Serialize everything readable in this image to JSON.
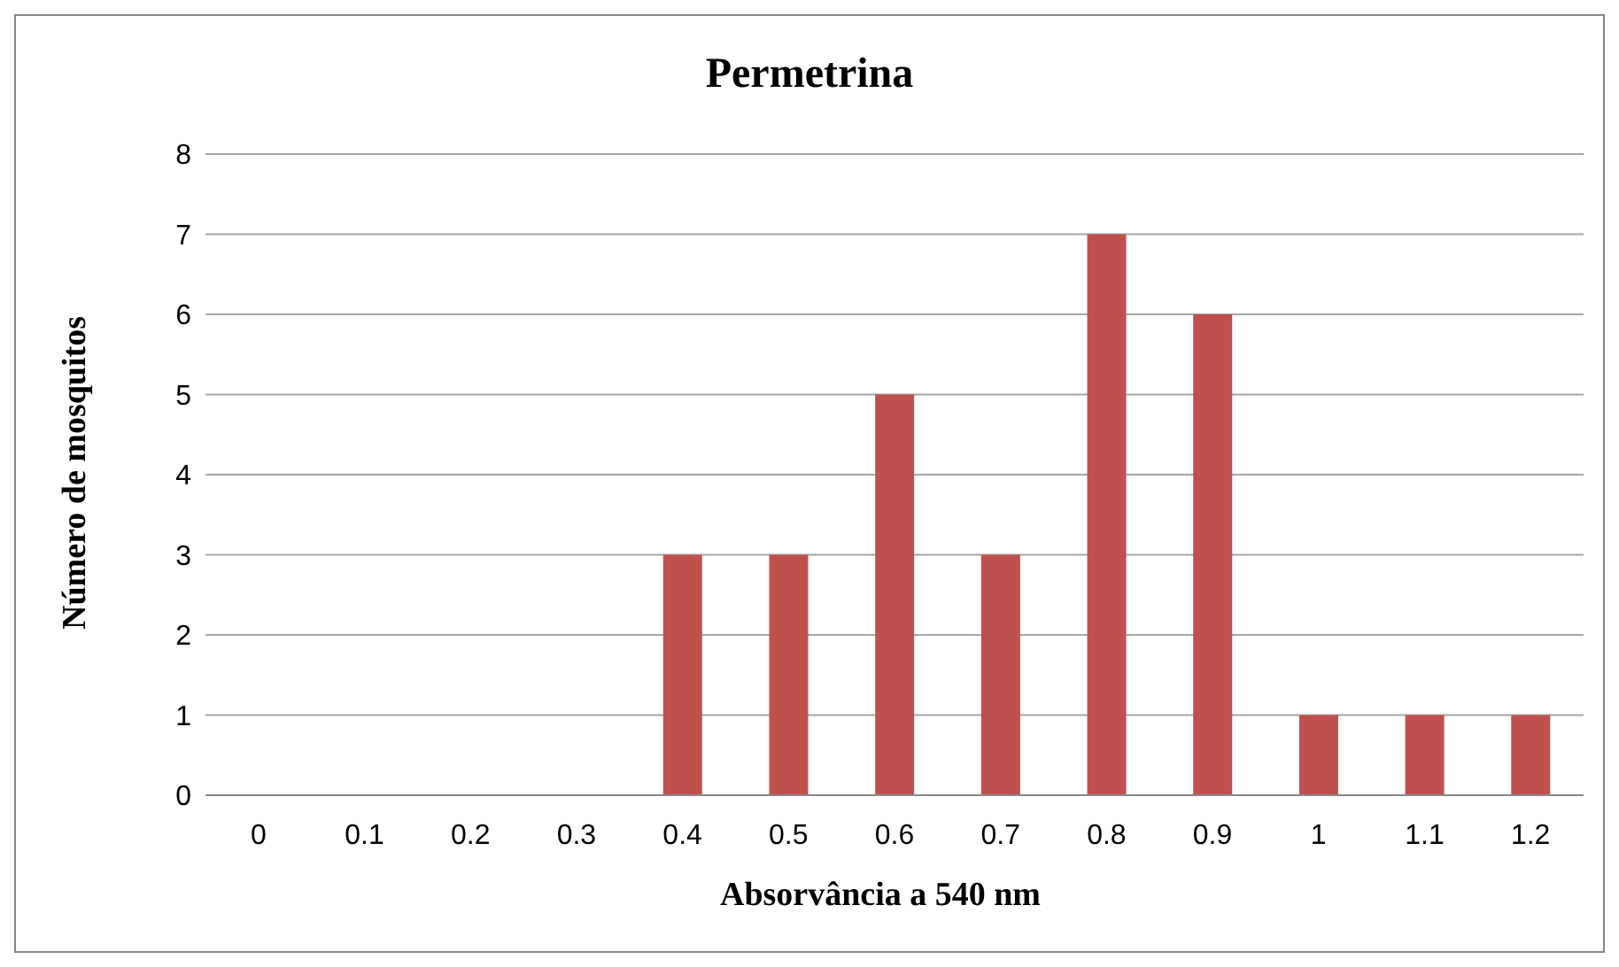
{
  "chart_data": {
    "type": "bar",
    "title": "Permetrina",
    "xlabel": "Absorvância a 540 nm",
    "ylabel": "Número de mosquitos",
    "categories": [
      "0",
      "0.1",
      "0.2",
      "0.3",
      "0.4",
      "0.5",
      "0.6",
      "0.7",
      "0.8",
      "0.9",
      "1",
      "1.1",
      "1.2"
    ],
    "values": [
      0,
      0,
      0,
      0,
      3,
      3,
      5,
      3,
      7,
      6,
      1,
      1,
      1
    ],
    "color": "#c0504d",
    "ylim": [
      0,
      8
    ],
    "yticks": [
      0,
      1,
      2,
      3,
      4,
      5,
      6,
      7,
      8
    ],
    "grid": "y",
    "legend": false
  }
}
